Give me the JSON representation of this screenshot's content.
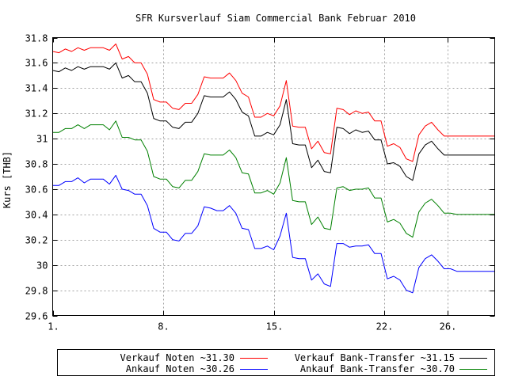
{
  "chart_data": {
    "type": "line",
    "title": "SFR Kursverlauf Siam Commercial Bank Februar 2010",
    "xlabel": "",
    "ylabel": "Kurs [THB]",
    "xlim": [
      1,
      29
    ],
    "ylim": [
      29.6,
      31.8
    ],
    "x_ticks": [
      1,
      8,
      15,
      22,
      26
    ],
    "x_tick_labels": [
      "1.",
      "8.",
      "15.",
      "22.",
      "26."
    ],
    "y_ticks": [
      29.6,
      29.8,
      30,
      30.2,
      30.4,
      30.6,
      30.8,
      31,
      31.2,
      31.4,
      31.6,
      31.8
    ],
    "y_tick_labels": [
      "29.6",
      "29.8",
      "30",
      "30.2",
      "30.4",
      "30.6",
      "30.8",
      "31",
      "31.2",
      "31.4",
      "31.6",
      "31.8"
    ],
    "grid": true,
    "legend_position": "bottom",
    "x": [
      1,
      1.4,
      1.8,
      2.2,
      2.6,
      3,
      3.4,
      3.8,
      4.2,
      4.6,
      5,
      5.4,
      5.8,
      6.2,
      6.6,
      7,
      7.4,
      7.8,
      8.2,
      8.6,
      9,
      9.4,
      9.8,
      10.2,
      10.6,
      11,
      11.4,
      11.8,
      12.2,
      12.6,
      13,
      13.4,
      13.8,
      14.2,
      14.6,
      15,
      15.4,
      15.8,
      16.2,
      16.6,
      17,
      17.4,
      17.8,
      18.2,
      18.6,
      19,
      19.4,
      19.8,
      20.2,
      20.6,
      21,
      21.4,
      21.8,
      22.2,
      22.6,
      23,
      23.4,
      23.8,
      24.2,
      24.6,
      25,
      25.4,
      25.8,
      26.2,
      26.6,
      27,
      27.4,
      27.8,
      28.2,
      28.6,
      29
    ],
    "series": [
      {
        "name": "Verkauf Noten ~31.30",
        "color": "#ff0000",
        "values": [
          31.69,
          31.68,
          31.71,
          31.69,
          31.72,
          31.7,
          31.72,
          31.72,
          31.72,
          31.7,
          31.75,
          31.63,
          31.65,
          31.6,
          31.6,
          31.51,
          31.31,
          31.29,
          31.29,
          31.24,
          31.23,
          31.28,
          31.28,
          31.35,
          31.49,
          31.48,
          31.48,
          31.48,
          31.52,
          31.46,
          31.36,
          31.33,
          31.17,
          31.17,
          31.2,
          31.18,
          31.26,
          31.46,
          31.1,
          31.09,
          31.09,
          30.92,
          30.98,
          30.89,
          30.88,
          31.24,
          31.23,
          31.19,
          31.22,
          31.2,
          31.21,
          31.14,
          31.14,
          30.94,
          30.96,
          30.93,
          30.84,
          30.82,
          31.03,
          31.1,
          31.13,
          31.07,
          31.02,
          31.02,
          31.02,
          31.02,
          31.02,
          31.02,
          31.02,
          31.02,
          31.02
        ]
      },
      {
        "name": "Verkauf Bank-Transfer ~31.15",
        "color": "#000000",
        "values": [
          31.54,
          31.53,
          31.56,
          31.54,
          31.57,
          31.55,
          31.57,
          31.57,
          31.57,
          31.55,
          31.6,
          31.48,
          31.5,
          31.45,
          31.45,
          31.36,
          31.16,
          31.14,
          31.14,
          31.09,
          31.08,
          31.13,
          31.13,
          31.2,
          31.34,
          31.33,
          31.33,
          31.33,
          31.37,
          31.31,
          31.21,
          31.18,
          31.02,
          31.02,
          31.05,
          31.03,
          31.11,
          31.31,
          30.96,
          30.95,
          30.95,
          30.77,
          30.83,
          30.74,
          30.73,
          31.09,
          31.08,
          31.04,
          31.07,
          31.05,
          31.06,
          30.99,
          30.99,
          30.8,
          30.81,
          30.78,
          30.7,
          30.67,
          30.88,
          30.95,
          30.98,
          30.92,
          30.87,
          30.87,
          30.87,
          30.87,
          30.87,
          30.87,
          30.87,
          30.87,
          30.87
        ]
      },
      {
        "name": "Ankauf Noten ~30.26",
        "color": "#0000ff",
        "values": [
          30.63,
          30.63,
          30.66,
          30.66,
          30.69,
          30.65,
          30.68,
          30.68,
          30.68,
          30.64,
          30.71,
          30.6,
          30.59,
          30.56,
          30.56,
          30.47,
          30.29,
          30.26,
          30.26,
          30.2,
          30.19,
          30.25,
          30.25,
          30.31,
          30.46,
          30.45,
          30.43,
          30.43,
          30.47,
          30.41,
          30.29,
          30.28,
          30.13,
          30.13,
          30.15,
          30.12,
          30.23,
          30.41,
          30.06,
          30.05,
          30.05,
          29.88,
          29.93,
          29.85,
          29.83,
          30.17,
          30.17,
          30.14,
          30.15,
          30.15,
          30.16,
          30.09,
          30.09,
          29.89,
          29.91,
          29.88,
          29.8,
          29.78,
          29.98,
          30.05,
          30.08,
          30.03,
          29.97,
          29.97,
          29.95,
          29.95,
          29.95,
          29.95,
          29.95,
          29.95,
          29.95
        ]
      },
      {
        "name": "Ankauf Bank-Transfer ~30.70",
        "color": "#008000",
        "values": [
          31.05,
          31.05,
          31.08,
          31.08,
          31.11,
          31.08,
          31.11,
          31.11,
          31.11,
          31.07,
          31.14,
          31.01,
          31.01,
          30.99,
          30.99,
          30.9,
          30.7,
          30.68,
          30.68,
          30.62,
          30.61,
          30.67,
          30.67,
          30.74,
          30.88,
          30.87,
          30.87,
          30.87,
          30.91,
          30.85,
          30.73,
          30.72,
          30.57,
          30.57,
          30.59,
          30.56,
          30.65,
          30.85,
          30.51,
          30.5,
          30.5,
          30.32,
          30.38,
          30.29,
          30.28,
          30.61,
          30.62,
          30.59,
          30.6,
          30.6,
          30.61,
          30.53,
          30.53,
          30.34,
          30.36,
          30.33,
          30.25,
          30.22,
          30.42,
          30.49,
          30.52,
          30.47,
          30.41,
          30.41,
          30.4,
          30.4,
          30.4,
          30.4,
          30.4,
          30.4,
          30.4
        ]
      }
    ]
  }
}
